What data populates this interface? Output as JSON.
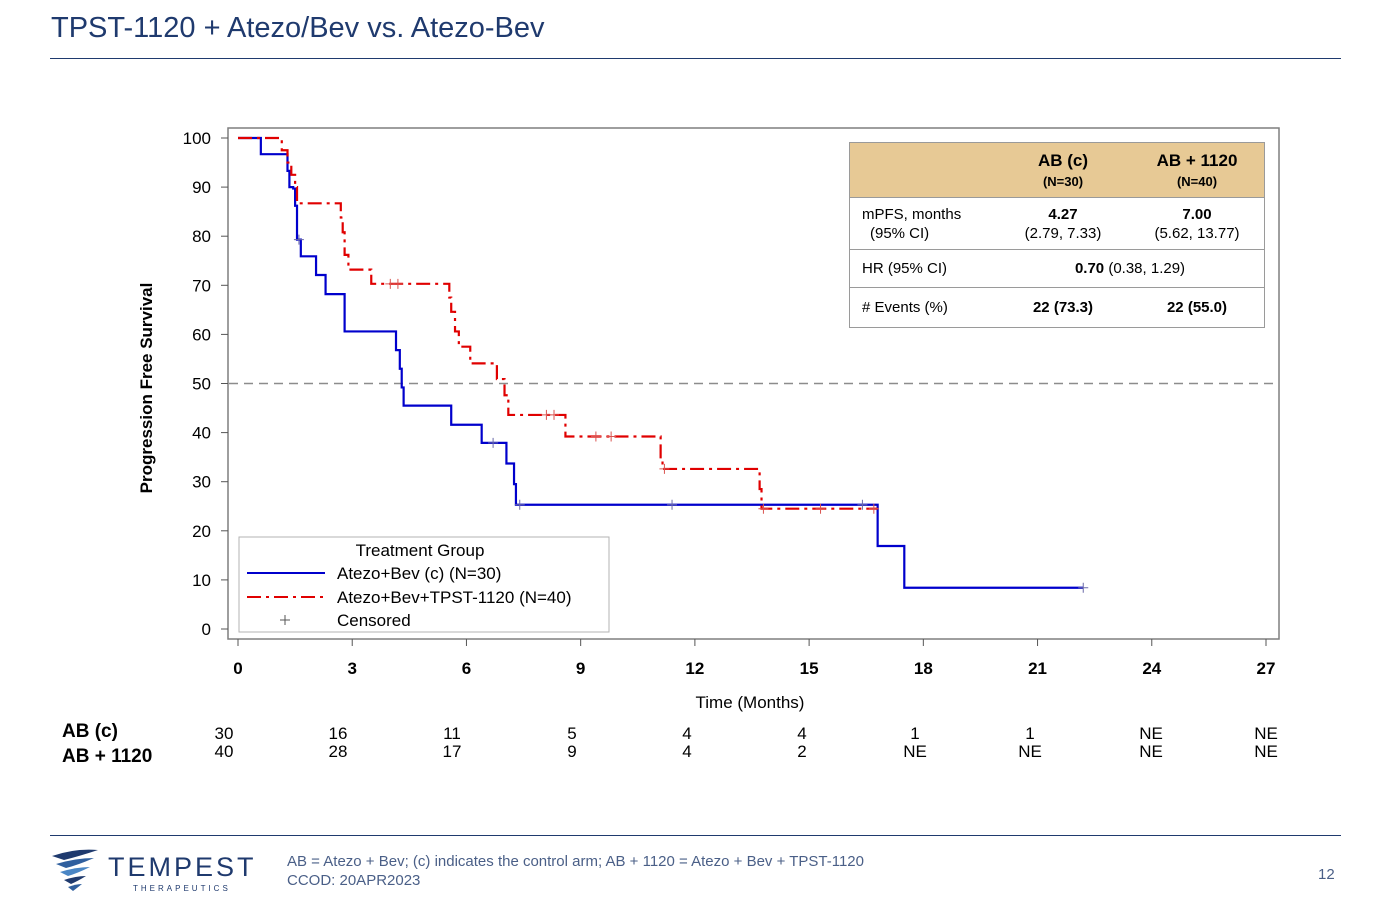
{
  "slide": {
    "title": "TPST-1120 + Atezo/Bev vs. Atezo-Bev",
    "footnote_line1": "AB = Atezo + Bev; (c) indicates the control arm; AB + 1120 = Atezo + Bev + TPST-1120",
    "footnote_line2": "CCOD: 20APR2023",
    "page_number": "12",
    "logo_name": "TEMPEST",
    "logo_sub": "THERAPEUTICS"
  },
  "summary_table": {
    "col1_title": "AB (c)",
    "col1_n": "(N=30)",
    "col2_title": "AB + 1120",
    "col2_n": "(N=40)",
    "row1_label": "mPFS, months",
    "row1_sublabel": "(95% CI)",
    "row1_col1": "4.27",
    "row1_col1_ci": "(2.79, 7.33)",
    "row1_col2": "7.00",
    "row1_col2_ci": "(5.62, 13.77)",
    "row2_label": "HR (95% CI)",
    "row2_value": "0.70",
    "row2_ci": "(0.38, 1.29)",
    "row3_label": "# Events (%)",
    "row3_col1": "22 (73.3)",
    "row3_col2": "22 (55.0)"
  },
  "risk_table": {
    "rows": [
      {
        "label": "AB (c)",
        "values": [
          "30",
          "16",
          "11",
          "5",
          "4",
          "4",
          "1",
          "1",
          "NE",
          "NE"
        ]
      },
      {
        "label": "AB + 1120",
        "values": [
          "40",
          "28",
          "17",
          "9",
          "4",
          "2",
          "NE",
          "NE",
          "NE",
          "NE"
        ]
      }
    ]
  },
  "chart_data": {
    "type": "line",
    "title": "",
    "xlabel": "Time (Months)",
    "ylabel": "Progression Free Survival",
    "xlim": [
      0,
      27
    ],
    "ylim": [
      0,
      100
    ],
    "x_ticks": [
      "0",
      "3",
      "6",
      "9",
      "12",
      "15",
      "18",
      "21",
      "24",
      "27"
    ],
    "y_ticks": [
      "0",
      "10",
      "20",
      "30",
      "40",
      "50",
      "60",
      "70",
      "80",
      "90",
      "100"
    ],
    "reference_line_y": 50,
    "grid": false,
    "legend": {
      "title": "Treatment Group",
      "placement": "bottom-left",
      "censored_label": "Censored"
    },
    "series": [
      {
        "name": "Atezo+Bev (c) (N=30)",
        "color": "#0000cc",
        "style": "solid",
        "steps": [
          [
            0,
            100
          ],
          [
            0.6,
            96.7
          ],
          [
            1.3,
            93.3
          ],
          [
            1.35,
            90
          ],
          [
            1.45,
            89.7
          ],
          [
            1.5,
            86.2
          ],
          [
            1.55,
            79.3
          ],
          [
            1.65,
            75.9
          ],
          [
            2.05,
            72.1
          ],
          [
            2.3,
            68.2
          ],
          [
            2.8,
            60.6
          ],
          [
            4.15,
            56.8
          ],
          [
            4.25,
            53
          ],
          [
            4.3,
            49.2
          ],
          [
            4.35,
            45.5
          ],
          [
            5.6,
            41.6
          ],
          [
            6.4,
            37.9
          ],
          [
            7.05,
            33.7
          ],
          [
            7.25,
            29.5
          ],
          [
            7.3,
            25.3
          ],
          [
            16.8,
            16.9
          ],
          [
            17.5,
            8.4
          ],
          [
            22.2,
            8.4
          ]
        ],
        "censored_x": [
          1.6,
          6.7,
          7.4,
          11.4,
          16.4,
          22.2
        ]
      },
      {
        "name": "Atezo+Bev+TPST-1120 (N=40)",
        "color": "#e00000",
        "style": "dashdot",
        "steps": [
          [
            0,
            100
          ],
          [
            1.15,
            97.5
          ],
          [
            1.3,
            95
          ],
          [
            1.4,
            92.5
          ],
          [
            1.5,
            90
          ],
          [
            1.55,
            86.7
          ],
          [
            2.7,
            83.8
          ],
          [
            2.75,
            80.8
          ],
          [
            2.8,
            76.2
          ],
          [
            2.9,
            73.2
          ],
          [
            3.5,
            70.3
          ],
          [
            5.55,
            67.5
          ],
          [
            5.6,
            64.6
          ],
          [
            5.7,
            60.6
          ],
          [
            5.8,
            57.5
          ],
          [
            6.1,
            54.1
          ],
          [
            6.8,
            50.9
          ],
          [
            7.0,
            47.6
          ],
          [
            7.1,
            43.6
          ],
          [
            8.6,
            39.2
          ],
          [
            11.1,
            33.9
          ],
          [
            11.15,
            32.6
          ],
          [
            13.7,
            28.5
          ],
          [
            13.75,
            24.5
          ],
          [
            16.8,
            24.5
          ]
        ],
        "censored_x": [
          4.0,
          4.2,
          8.1,
          8.3,
          9.4,
          9.8,
          11.2,
          13.8,
          15.3,
          16.7
        ]
      }
    ]
  }
}
